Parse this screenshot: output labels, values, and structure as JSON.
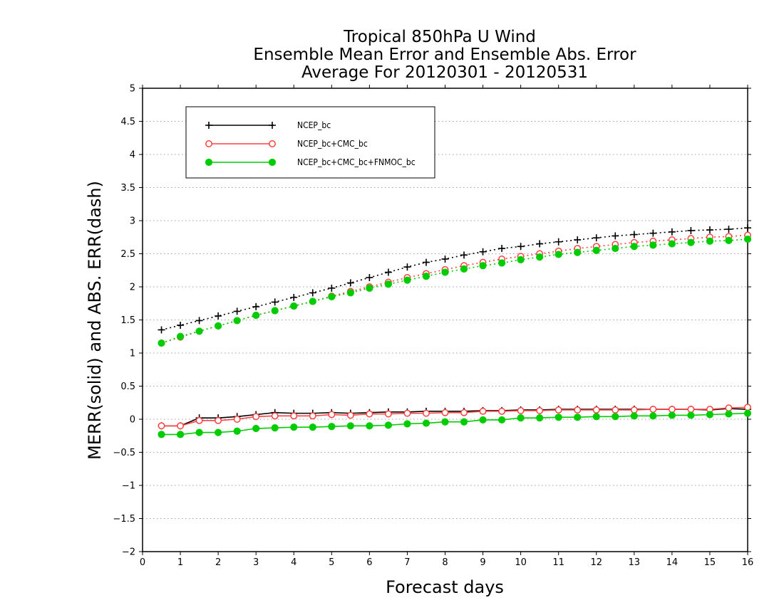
{
  "title_lines": [
    "Tropical 850hPa U Wind",
    "Ensemble Mean Error and Ensemble Abs. Error",
    "Average For 20120301 - 20120531"
  ],
  "chart_data": {
    "type": "line",
    "xlabel": "Forecast days",
    "ylabel": "MERR(solid) and ABS. ERR(dash)",
    "xlim": [
      0,
      16
    ],
    "ylim": [
      -2,
      5
    ],
    "xticks": [
      "0",
      "1",
      "2",
      "3",
      "4",
      "5",
      "6",
      "7",
      "8",
      "9",
      "10",
      "11",
      "12",
      "13",
      "14",
      "15",
      "16"
    ],
    "yticks": [
      "−2",
      "−1.5",
      "−1",
      "−0.5",
      "0",
      "0.5",
      "1",
      "1.5",
      "2",
      "2.5",
      "3",
      "3.5",
      "4",
      "4.5",
      "5"
    ],
    "ytick_values": [
      -2,
      -1.5,
      -1,
      -0.5,
      0,
      0.5,
      1,
      1.5,
      2,
      2.5,
      3,
      3.5,
      4,
      4.5,
      5
    ],
    "grid": "horizontal dotted",
    "legend_position": "top-left",
    "x": [
      0.5,
      1,
      1.5,
      2,
      2.5,
      3,
      3.5,
      4,
      4.5,
      5,
      5.5,
      6,
      6.5,
      7,
      7.5,
      8,
      8.5,
      9,
      9.5,
      10,
      10.5,
      11,
      11.5,
      12,
      12.5,
      13,
      13.5,
      14,
      14.5,
      15,
      15.5,
      16
    ],
    "series": [
      {
        "name": "NCEP_bc",
        "color": "#000000",
        "marker": "plus",
        "merr": [
          -0.1,
          -0.1,
          0.02,
          0.02,
          0.04,
          0.07,
          0.1,
          0.09,
          0.09,
          0.1,
          0.09,
          0.1,
          0.11,
          0.11,
          0.12,
          0.12,
          0.12,
          0.13,
          0.13,
          0.14,
          0.14,
          0.15,
          0.15,
          0.15,
          0.15,
          0.15,
          0.15,
          0.15,
          0.15,
          0.14,
          0.16,
          0.15
        ],
        "abs_err": [
          1.35,
          1.42,
          1.49,
          1.56,
          1.63,
          1.7,
          1.77,
          1.84,
          1.91,
          1.98,
          2.06,
          2.14,
          2.22,
          2.3,
          2.37,
          2.42,
          2.48,
          2.53,
          2.58,
          2.61,
          2.65,
          2.68,
          2.71,
          2.74,
          2.77,
          2.79,
          2.81,
          2.83,
          2.85,
          2.86,
          2.87,
          2.89
        ]
      },
      {
        "name": "NCEP_bc+CMC_bc",
        "color": "#ff4040",
        "marker": "open-circle",
        "merr": [
          -0.1,
          -0.1,
          -0.02,
          -0.02,
          0.0,
          0.04,
          0.05,
          0.05,
          0.05,
          0.07,
          0.06,
          0.08,
          0.08,
          0.09,
          0.09,
          0.1,
          0.1,
          0.12,
          0.12,
          0.13,
          0.13,
          0.14,
          0.14,
          0.14,
          0.14,
          0.14,
          0.15,
          0.15,
          0.15,
          0.15,
          0.17,
          0.18
        ],
        "abs_err": [
          1.15,
          1.24,
          1.33,
          1.41,
          1.49,
          1.57,
          1.64,
          1.71,
          1.78,
          1.86,
          1.93,
          2.0,
          2.07,
          2.14,
          2.2,
          2.26,
          2.32,
          2.37,
          2.42,
          2.46,
          2.5,
          2.54,
          2.58,
          2.61,
          2.64,
          2.67,
          2.69,
          2.71,
          2.73,
          2.75,
          2.76,
          2.78
        ]
      },
      {
        "name": "NCEP_bc+CMC_bc+FNMOC_bc",
        "color": "#00cc00",
        "marker": "filled-circle",
        "merr": [
          -0.23,
          -0.23,
          -0.2,
          -0.2,
          -0.18,
          -0.14,
          -0.13,
          -0.12,
          -0.12,
          -0.11,
          -0.1,
          -0.1,
          -0.09,
          -0.07,
          -0.06,
          -0.04,
          -0.04,
          -0.01,
          -0.01,
          0.02,
          0.02,
          0.03,
          0.03,
          0.04,
          0.04,
          0.05,
          0.05,
          0.06,
          0.06,
          0.07,
          0.08,
          0.09
        ],
        "abs_err": [
          1.15,
          1.25,
          1.33,
          1.41,
          1.49,
          1.57,
          1.64,
          1.71,
          1.78,
          1.85,
          1.91,
          1.98,
          2.04,
          2.1,
          2.16,
          2.22,
          2.27,
          2.32,
          2.36,
          2.41,
          2.45,
          2.49,
          2.52,
          2.55,
          2.58,
          2.61,
          2.63,
          2.65,
          2.67,
          2.69,
          2.7,
          2.72
        ]
      }
    ]
  }
}
